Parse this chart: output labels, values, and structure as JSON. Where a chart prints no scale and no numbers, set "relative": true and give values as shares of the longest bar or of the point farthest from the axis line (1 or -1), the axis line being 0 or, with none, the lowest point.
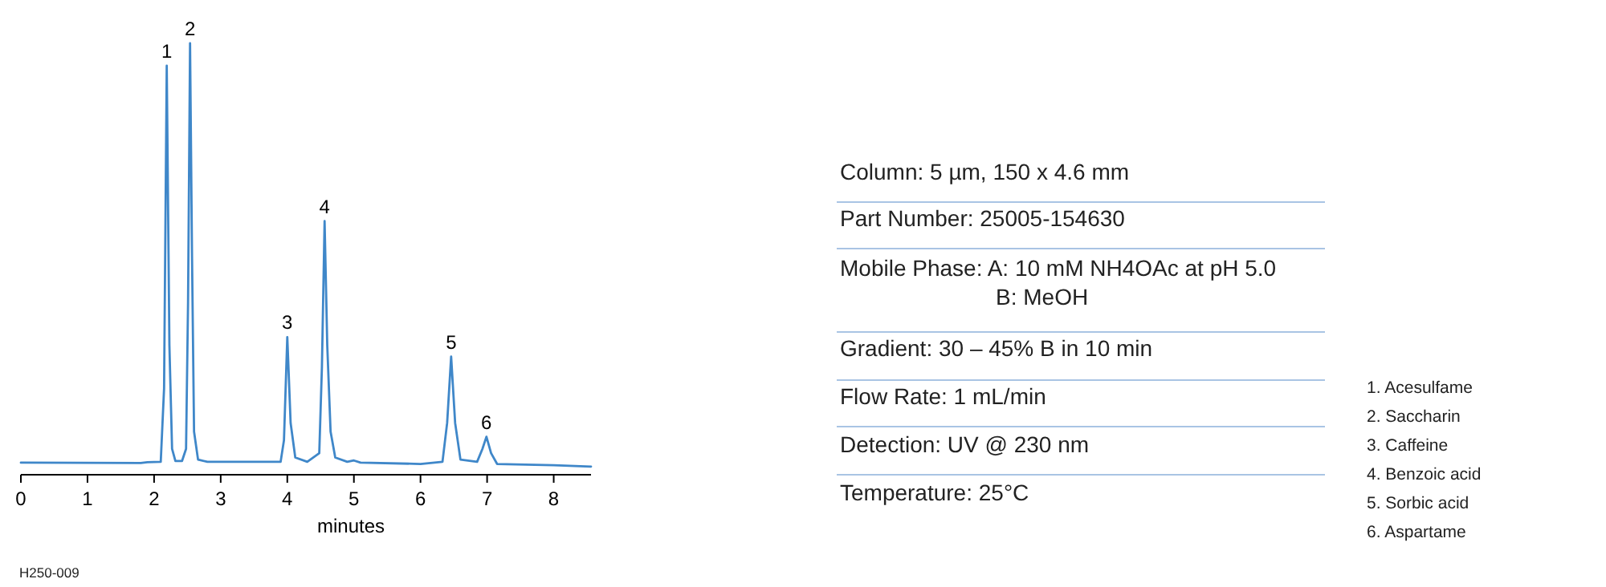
{
  "chart_data": {
    "type": "line",
    "relative": true,
    "xlabel": "minutes",
    "xlim": [
      0,
      8.56
    ],
    "xticks": [
      0,
      1,
      2,
      3,
      4,
      5,
      6,
      7,
      8
    ],
    "series": [
      {
        "color": "#3f87c9",
        "x": [
          0,
          1.8,
          1.9,
          2.1,
          2.15,
          2.19,
          2.23,
          2.27,
          2.32,
          2.42,
          2.48,
          2.51,
          2.54,
          2.57,
          2.6,
          2.66,
          2.8,
          3.9,
          3.95,
          4.0,
          4.05,
          4.12,
          4.3,
          4.48,
          4.52,
          4.56,
          4.6,
          4.65,
          4.72,
          4.9,
          5.0,
          5.1,
          6.0,
          6.33,
          6.4,
          6.46,
          6.52,
          6.6,
          6.85,
          6.93,
          6.99,
          7.06,
          7.15,
          8.0,
          8.56
        ],
        "values": [
          0.028,
          0.027,
          0.029,
          0.03,
          0.2,
          0.948,
          0.3,
          0.06,
          0.032,
          0.032,
          0.06,
          0.4,
          1.0,
          0.5,
          0.1,
          0.035,
          0.03,
          0.03,
          0.08,
          0.319,
          0.12,
          0.04,
          0.03,
          0.05,
          0.25,
          0.588,
          0.3,
          0.1,
          0.04,
          0.03,
          0.033,
          0.028,
          0.025,
          0.03,
          0.12,
          0.274,
          0.12,
          0.035,
          0.03,
          0.06,
          0.088,
          0.05,
          0.025,
          0.022,
          0.019
        ]
      }
    ],
    "annotations": [
      {
        "text": "1",
        "x": 2.19,
        "y": 0.948
      },
      {
        "text": "2",
        "x": 2.54,
        "y": 1.0
      },
      {
        "text": "3",
        "x": 4.0,
        "y": 0.319
      },
      {
        "text": "4",
        "x": 4.56,
        "y": 0.588
      },
      {
        "text": "5",
        "x": 6.46,
        "y": 0.274
      },
      {
        "text": "6",
        "x": 6.99,
        "y": 0.088
      },
      "Column: 5 µm, 150 x 4.6 mm",
      "Part Number: 25005-154630",
      "Mobile Phase: A: 10 mM NH4OAc at pH 5.0",
      "B: MeOH",
      "Gradient: 30 – 45% B in 10 min",
      "Flow Rate: 1 mL/min",
      "Detection: UV @ 230 nm",
      "Temperature: 25°C",
      "1. Acesulfame",
      "2. Saccharin",
      "3. Caffeine",
      "4. Benzoic acid",
      "5. Sorbic acid",
      "6. Aspartame",
      "H250-009"
    ]
  }
}
